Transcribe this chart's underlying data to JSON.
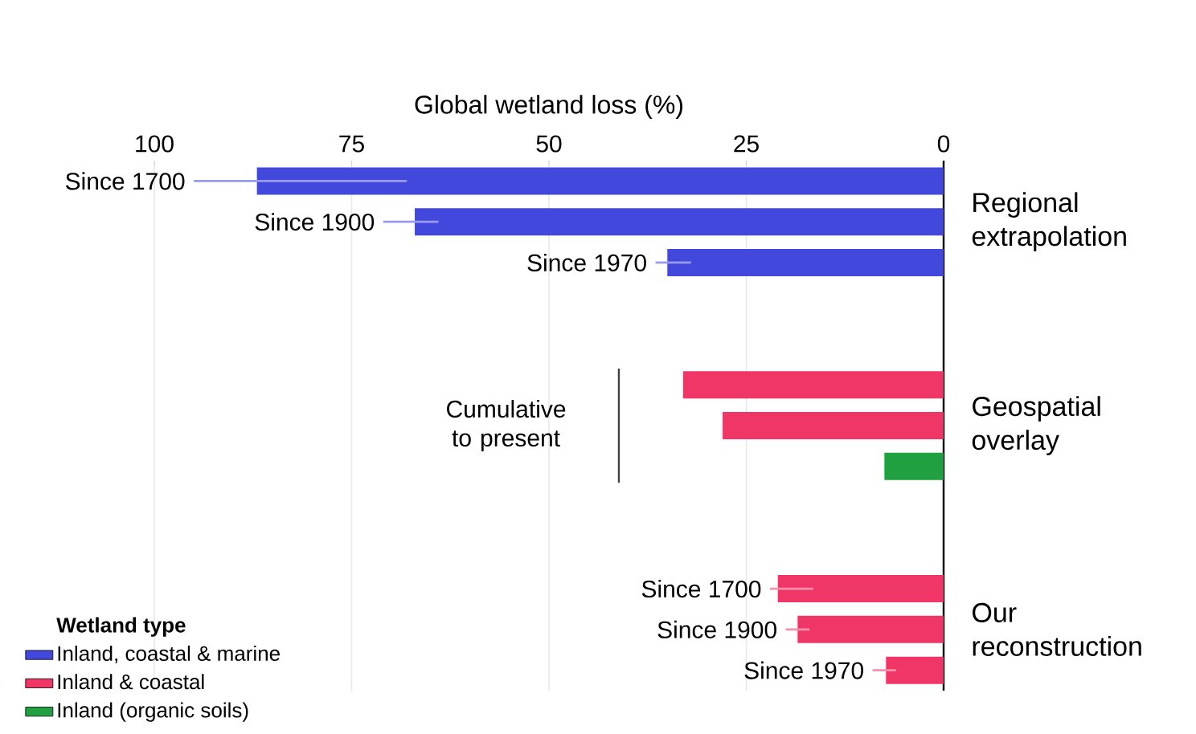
{
  "chart_data": {
    "type": "bar",
    "orientation": "horizontal",
    "xlabel": "Global wetland loss (%)",
    "categories": [
      "Since 1700",
      "Since 1900",
      "Since 1970",
      null,
      null,
      null,
      null,
      null,
      null,
      null,
      "Since 1700",
      "Since 1900",
      "Since 1970"
    ],
    "series": [
      {
        "name": "Inland, coastal & marine",
        "color": "#4348dc",
        "values": [
          87,
          67,
          35,
          null,
          null,
          null,
          null,
          null,
          null,
          null,
          null,
          null,
          null
        ],
        "errors": [
          [
            68,
            95
          ],
          [
            64,
            71
          ],
          [
            32,
            36.5
          ],
          null,
          null,
          null,
          null,
          null,
          null,
          null,
          null,
          null,
          null
        ]
      },
      {
        "name": "Inland & coastal",
        "color": "#f03567",
        "values": [
          null,
          null,
          null,
          null,
          null,
          33,
          28,
          null,
          null,
          null,
          21,
          18.5,
          7.3
        ],
        "errors": [
          null,
          null,
          null,
          null,
          null,
          null,
          null,
          null,
          null,
          null,
          [
            16.5,
            22
          ],
          [
            17,
            20
          ],
          [
            6,
            9
          ]
        ]
      },
      {
        "name": "Inland (organic soils)",
        "color": "#20a040",
        "values": [
          null,
          null,
          null,
          null,
          null,
          null,
          null,
          7.5,
          null,
          null,
          null,
          null,
          null
        ]
      }
    ],
    "xlim": [
      100,
      0
    ],
    "xticks": [
      100,
      75,
      50,
      25,
      0
    ],
    "grid": "x",
    "legend": "bottom left",
    "legend_title": "Wetland type",
    "annotations": [
      "Regional extrapolation",
      "Geospatial overlay",
      "Our reconstruction",
      "Cumulative to present"
    ]
  }
}
